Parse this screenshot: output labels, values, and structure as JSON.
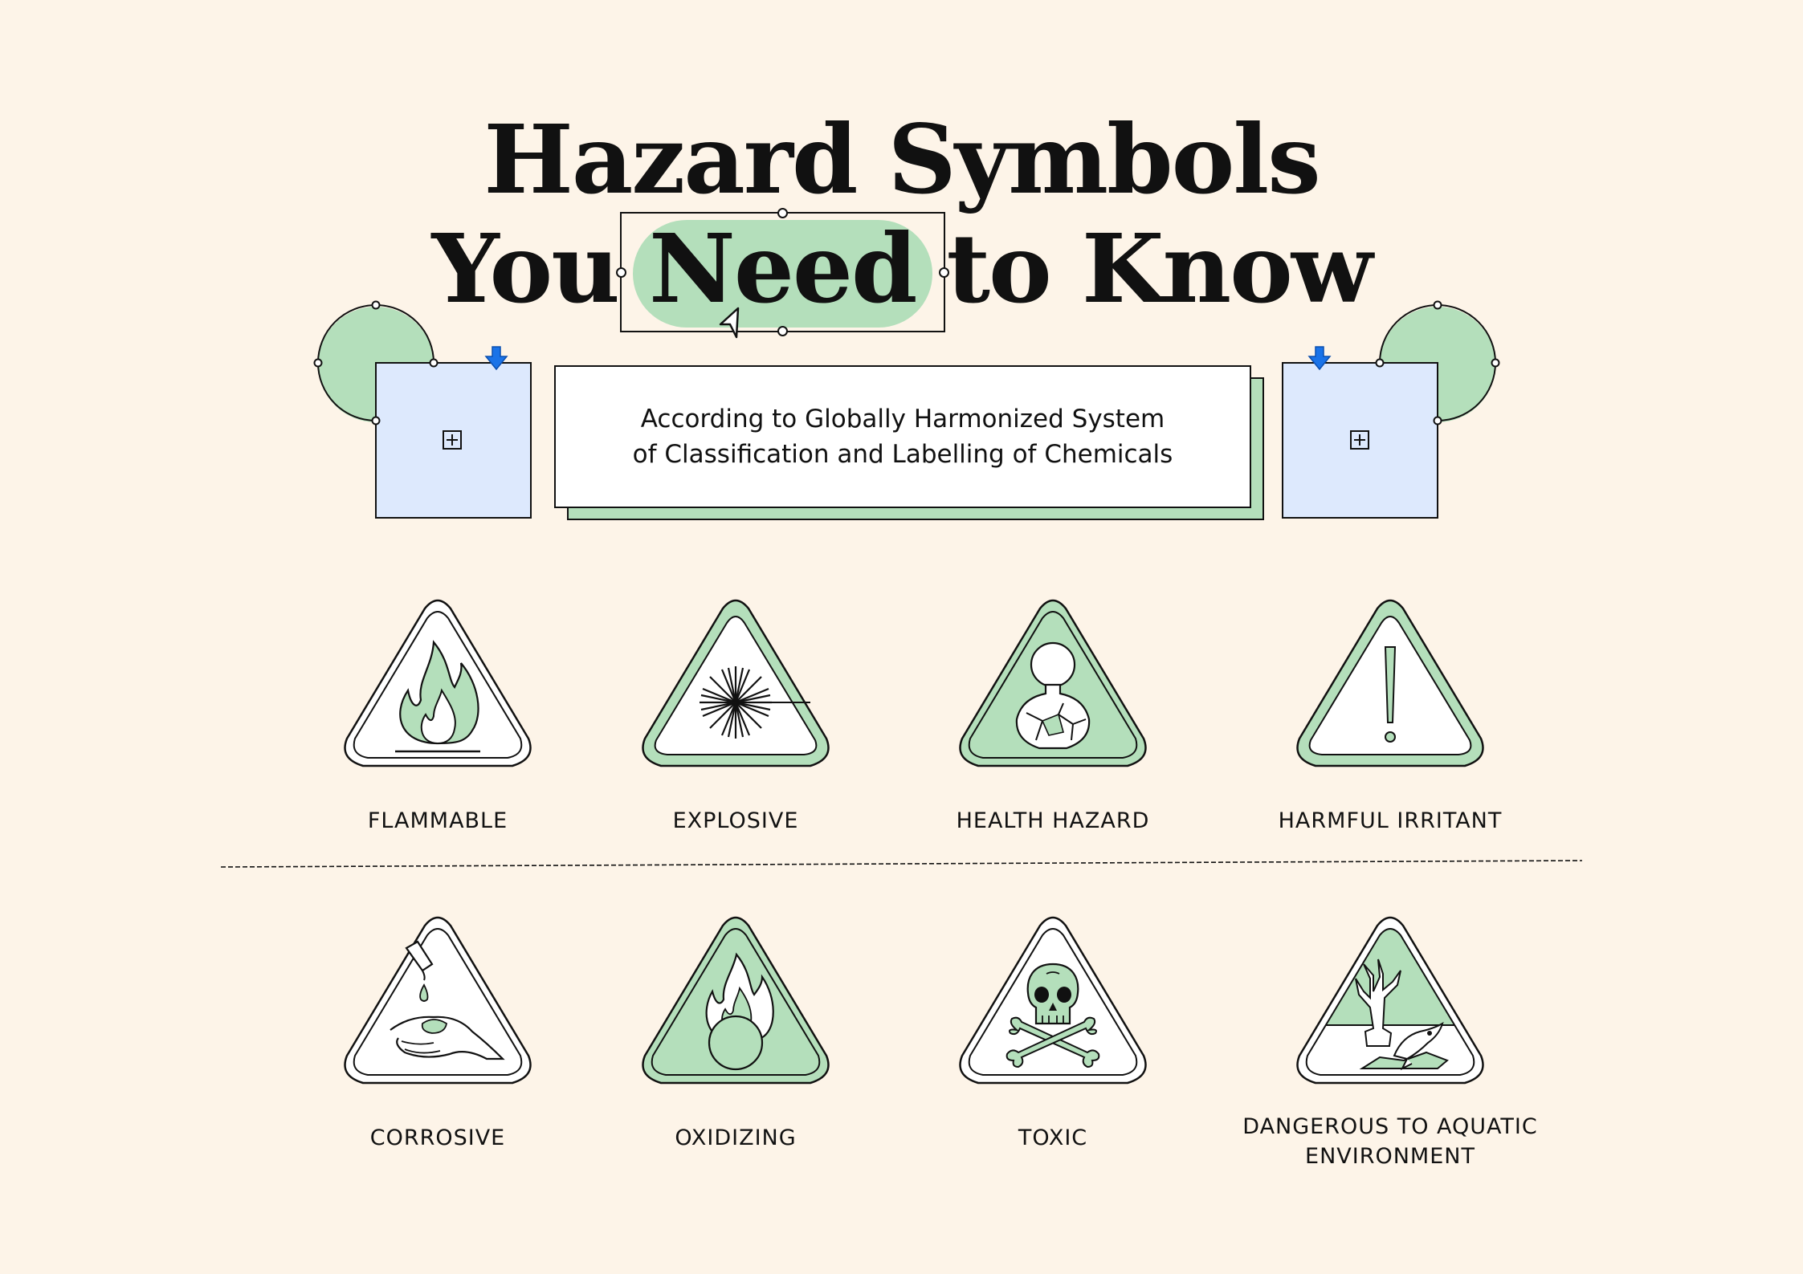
{
  "title": {
    "line1": "Hazard Symbols",
    "line2_before": "You",
    "line2_highlight": "Need",
    "line2_after": "to Know"
  },
  "subtitle": {
    "line1": "According to Globally Harmonized System",
    "line2": "of Classification and Labelling of Chemicals"
  },
  "colors": {
    "background": "#fdf4e8",
    "accent_green": "#b4dfbb",
    "accent_blue": "#dde9fd",
    "arrow_blue": "#1a73e8",
    "ink": "#111111"
  },
  "hazards_row1": [
    {
      "label": "FLAMMABLE",
      "icon": "flame-icon"
    },
    {
      "label": "EXPLOSIVE",
      "icon": "explosion-icon"
    },
    {
      "label": "HEALTH HAZARD",
      "icon": "health-hazard-icon"
    },
    {
      "label": "HARMFUL IRRITANT",
      "icon": "exclamation-icon"
    }
  ],
  "hazards_row2": [
    {
      "label": "CORROSIVE",
      "icon": "corrosive-icon"
    },
    {
      "label": "OXIDIZING",
      "icon": "flame-over-circle-icon"
    },
    {
      "label": "TOXIC",
      "icon": "skull-crossbones-icon"
    },
    {
      "label": "DANGEROUS TO AQUATIC\nENVIRONMENT",
      "icon": "aquatic-environment-icon"
    }
  ]
}
